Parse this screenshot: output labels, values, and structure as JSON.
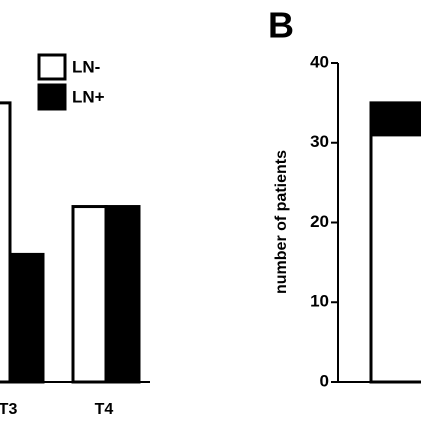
{
  "chart_data": [
    {
      "type": "bar",
      "categories": [
        "T3",
        "T4"
      ],
      "series": [
        {
          "name": "LN-",
          "color": "#ffffff",
          "values": [
            35,
            22
          ]
        },
        {
          "name": "LN+",
          "color": "#000000",
          "values": [
            16,
            22
          ]
        }
      ],
      "ylim": [
        0,
        40
      ],
      "legend": "top"
    },
    {
      "type": "stacked_bar",
      "panel_label": "B",
      "y_label": "number of patients",
      "categories": [
        null
      ],
      "series": [
        {
          "color": "#ffffff",
          "values": [
            31
          ]
        },
        {
          "color": "#000000",
          "values": [
            4
          ]
        }
      ],
      "ylim": [
        0,
        40
      ],
      "yticks": [
        0,
        10,
        20,
        30,
        40
      ]
    }
  ]
}
